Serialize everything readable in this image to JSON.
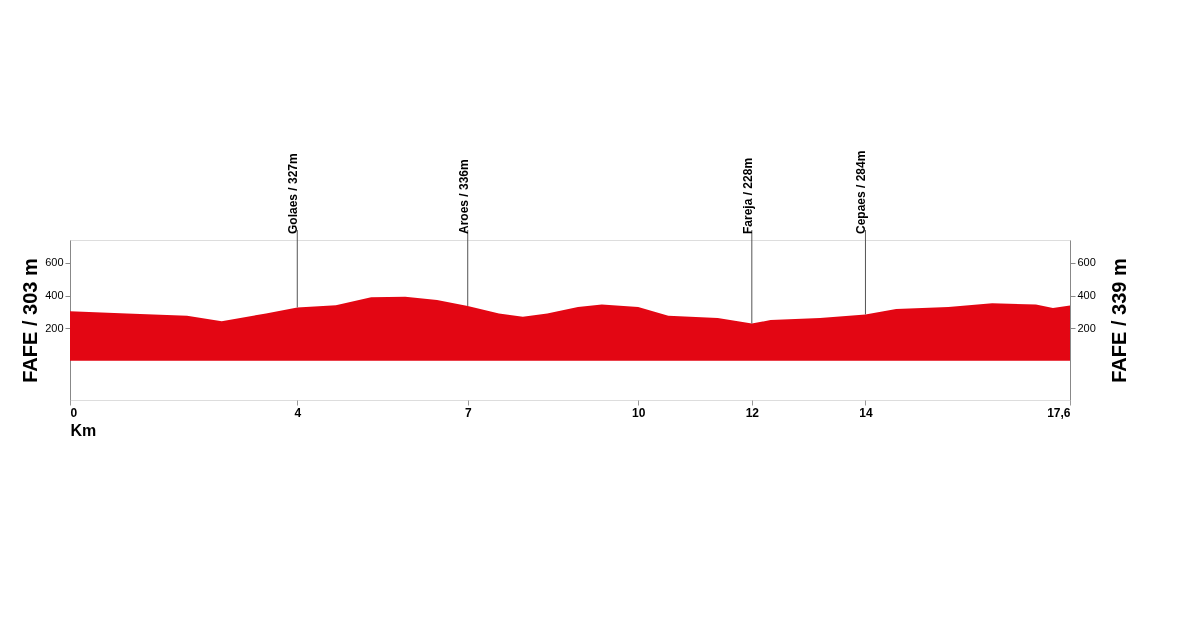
{
  "chart_data": {
    "type": "area",
    "ylabel": "FAFE / 303 m",
    "y2label": "FAFE / 339 m",
    "xlabel": "Km",
    "series": [
      {
        "color": "#e30613",
        "x": [
          0,
          1.0,
          2.06,
          2.67,
          3.45,
          4,
          4.68,
          5.3,
          5.9,
          6.46,
          7,
          7.55,
          7.97,
          8.4,
          8.94,
          9.36,
          10,
          10.53,
          11.4,
          12,
          12.33,
          13.2,
          14,
          14.54,
          15.46,
          16.23,
          17.0,
          17.3,
          17.6
        ],
        "values": [
          303,
          290,
          276,
          242,
          290,
          327,
          340,
          390,
          393,
          372,
          336,
          290,
          270,
          290,
          330,
          345,
          330,
          276,
          262,
          228,
          250,
          262,
          284,
          317,
          330,
          352,
          345,
          324,
          339
        ]
      }
    ],
    "xlim": [
      0,
      17.6
    ],
    "xticks": [
      0,
      4,
      7,
      10,
      12,
      14,
      {
        "value": 17.6,
        "label": "17,6"
      }
    ],
    "ylim": [
      -240,
      740
    ],
    "yticks": [
      200,
      400,
      600
    ],
    "y2lim": [
      -240,
      740
    ],
    "y2ticks": [
      200,
      400,
      600
    ],
    "grid": false,
    "annotations": [
      {
        "text": "Golaes / 327m",
        "x": 4,
        "y": 327
      },
      {
        "text": "Aroes / 336m",
        "x": 7,
        "y": 336
      },
      {
        "text": "Fareja / 228m",
        "x": 12,
        "y": 228
      },
      {
        "text": "Cepaes / 284m",
        "x": 14,
        "y": 284
      }
    ]
  }
}
